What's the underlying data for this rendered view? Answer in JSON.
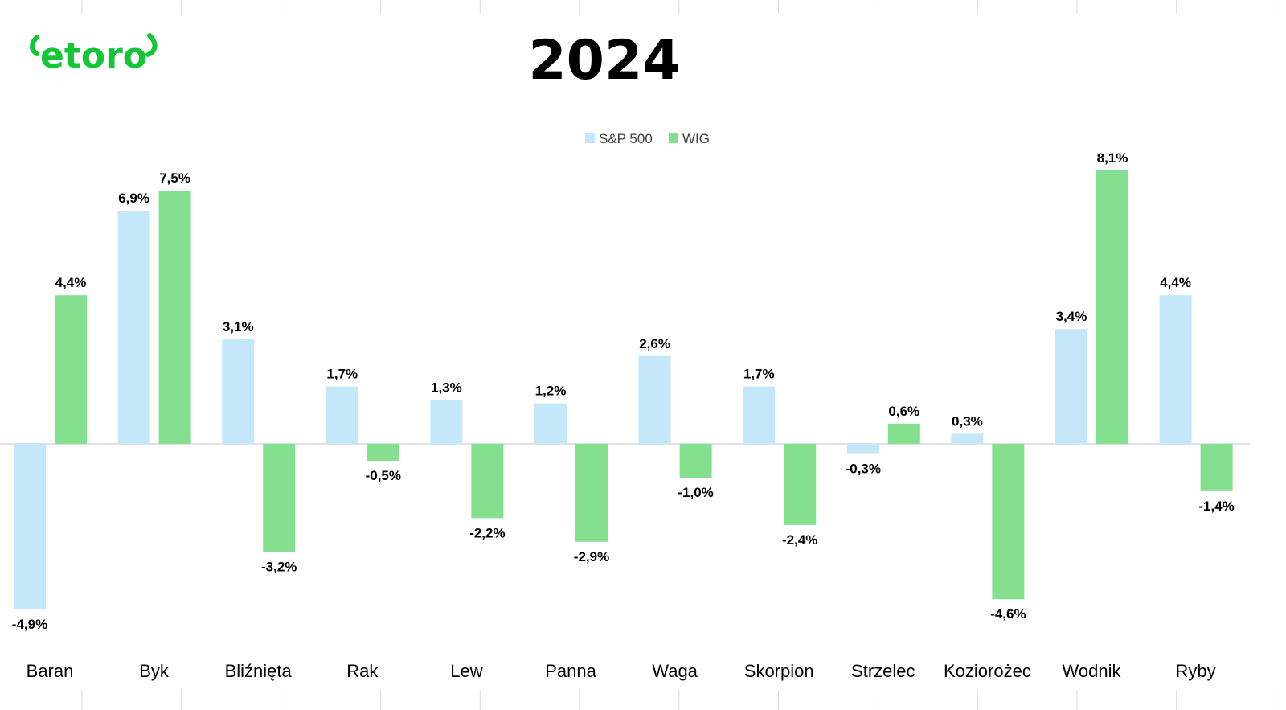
{
  "brand": {
    "logo_text": "etoro",
    "logo_color": "#13C636"
  },
  "chart_data": {
    "type": "bar",
    "title": "2024",
    "categories": [
      "Baran",
      "Byk",
      "Bliźnięta",
      "Rak",
      "Lew",
      "Panna",
      "Waga",
      "Skorpion",
      "Strzelec",
      "Koziorożec",
      "Wodnik",
      "Ryby"
    ],
    "series": [
      {
        "name": "S&P 500",
        "color": "#C4E7FA",
        "values": [
          -4.9,
          6.9,
          3.1,
          1.7,
          1.3,
          1.2,
          2.6,
          1.7,
          -0.3,
          0.3,
          3.4,
          4.4
        ],
        "labels": [
          "-4,9%",
          "6,9%",
          "3,1%",
          "1,7%",
          "1,3%",
          "1,2%",
          "2,6%",
          "1,7%",
          "-0,3%",
          "0,3%",
          "3,4%",
          "4,4%"
        ]
      },
      {
        "name": "WIG",
        "color": "#84E08E",
        "values": [
          4.4,
          7.5,
          -3.2,
          -0.5,
          -2.2,
          -2.9,
          -1.0,
          -2.4,
          0.6,
          -4.6,
          8.1,
          -1.4
        ],
        "labels": [
          "4,4%",
          "7,5%",
          "-3,2%",
          "-0,5%",
          "-2,2%",
          "-2,9%",
          "-1,0%",
          "-2,4%",
          "0,6%",
          "-4,6%",
          "8,1%",
          "-1,4%"
        ]
      }
    ],
    "ylim": [
      -5.5,
      8.5
    ],
    "grid": false,
    "legend_position": "top-center",
    "xlabel": "",
    "ylabel": ""
  }
}
